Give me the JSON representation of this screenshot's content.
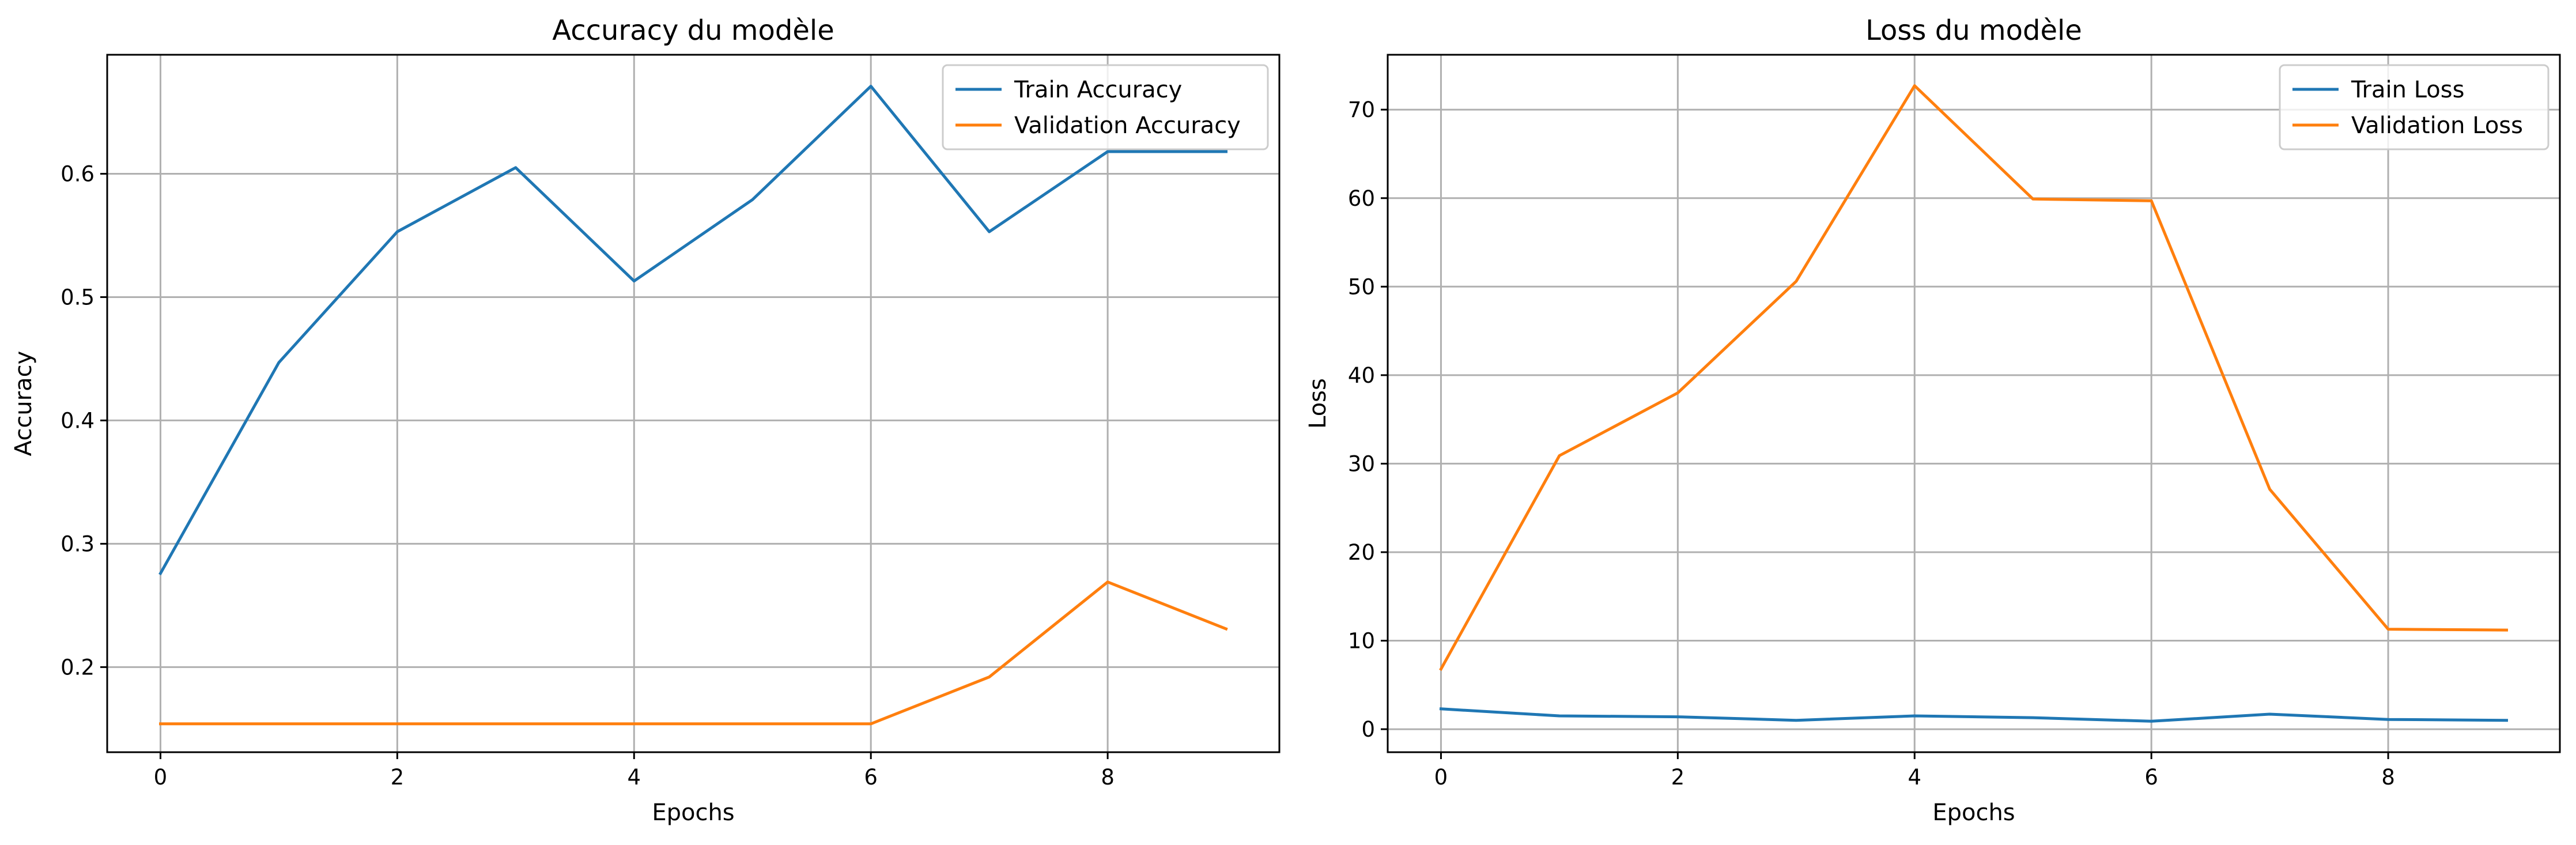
{
  "colors": {
    "train": "#1f77b4",
    "validation": "#ff7f0e",
    "grid": "#b0b0b0",
    "axes": "#000000"
  },
  "chart_data": [
    {
      "type": "line",
      "title": "Accuracy du modèle",
      "xlabel": "Epochs",
      "ylabel": "Accuracy",
      "xlim": [
        -0.45,
        9.45
      ],
      "ylim": [
        0.131,
        0.6965
      ],
      "xticks": [
        0,
        2,
        4,
        6,
        8
      ],
      "yticks": [
        0.2,
        0.3,
        0.4,
        0.5,
        0.6
      ],
      "grid": true,
      "legend_position": "top-right",
      "x": [
        0,
        1,
        2,
        3,
        4,
        5,
        6,
        7,
        8,
        9
      ],
      "series": [
        {
          "name": "Train Accuracy",
          "color": "#1f77b4",
          "values": [
            0.276,
            0.447,
            0.553,
            0.605,
            0.513,
            0.579,
            0.671,
            0.553,
            0.618,
            0.618
          ]
        },
        {
          "name": "Validation Accuracy",
          "color": "#ff7f0e",
          "values": [
            0.154,
            0.154,
            0.154,
            0.154,
            0.154,
            0.154,
            0.154,
            0.192,
            0.269,
            0.231
          ]
        }
      ]
    },
    {
      "type": "line",
      "title": "Loss du modèle",
      "xlabel": "Epochs",
      "ylabel": "Loss",
      "xlim": [
        -0.45,
        9.45
      ],
      "ylim": [
        -2.6,
        76.2
      ],
      "xticks": [
        0,
        2,
        4,
        6,
        8
      ],
      "yticks": [
        0,
        10,
        20,
        30,
        40,
        50,
        60,
        70
      ],
      "grid": true,
      "legend_position": "top-right",
      "x": [
        0,
        1,
        2,
        3,
        4,
        5,
        6,
        7,
        8,
        9
      ],
      "series": [
        {
          "name": "Train Loss",
          "color": "#1f77b4",
          "values": [
            2.3,
            1.5,
            1.4,
            1.0,
            1.5,
            1.3,
            0.9,
            1.7,
            1.1,
            1.0
          ]
        },
        {
          "name": "Validation Loss",
          "color": "#ff7f0e",
          "values": [
            6.8,
            30.9,
            38.0,
            50.6,
            72.7,
            59.9,
            59.7,
            27.1,
            11.3,
            11.2
          ]
        }
      ]
    }
  ]
}
